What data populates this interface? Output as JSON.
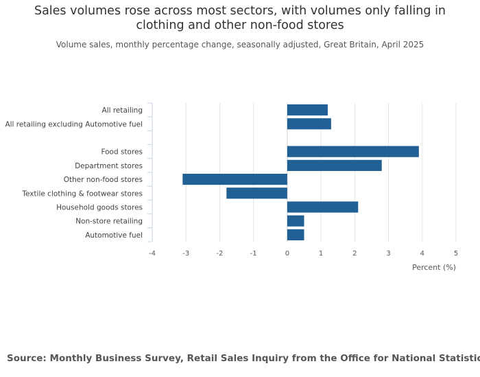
{
  "chart_data": {
    "type": "bar",
    "orientation": "horizontal",
    "title_lines": [
      "Sales volumes rose across most sectors, with volumes only falling in",
      "clothing and other non-food stores"
    ],
    "subtitle": "Volume sales, monthly percentage change, seasonally adjusted, Great Britain, April 2025",
    "xlabel": "Percent (%)",
    "ylabel": "",
    "xlim": [
      -4,
      5
    ],
    "x_ticks": [
      "-4",
      "-3",
      "-2",
      "-1",
      "0",
      "1",
      "2",
      "3",
      "4",
      "5"
    ],
    "grid": true,
    "bar_color": "#206095",
    "categories": [
      "All retailing",
      "All retailing excluding Automotive fuel",
      "",
      "Food stores",
      "Department stores",
      "Other non-food stores",
      "Textile clothing & footwear stores",
      "Household goods stores",
      "Non-store retailing",
      "Automotive fuel"
    ],
    "values": [
      1.2,
      1.3,
      null,
      3.9,
      2.8,
      -3.1,
      -1.8,
      2.1,
      0.5,
      0.5
    ],
    "source": "Source: Monthly Business Survey, Retail Sales Inquiry from the Office for National Statistics"
  }
}
